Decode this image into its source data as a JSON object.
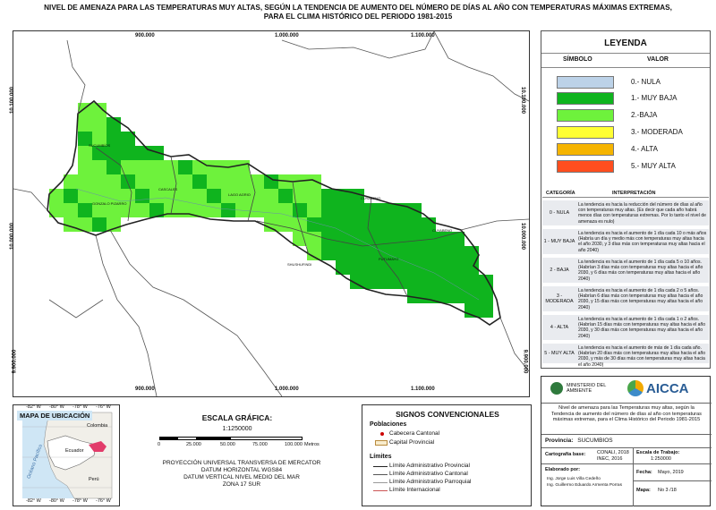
{
  "title": {
    "line1": "NIVEL DE AMENAZA PARA LAS TEMPERATURAS MUY ALTAS, SEGÚN LA TENDENCIA DE AUMENTO DEL NÚMERO DE DÍAS AL AÑO CON TEMPERATURAS MÁXIMAS EXTREMAS,",
    "line2": "PARA EL CLIMA HISTÓRICO DEL PERIODO 1981-2015"
  },
  "map": {
    "x_ticks": [
      "900.000",
      "1.000.000",
      "1.100.000"
    ],
    "y_ticks": [
      "10.100.000",
      "10.000.000",
      "9.900.000"
    ],
    "place_labels": [
      "GONZALO PIZARRO",
      "CASCALES",
      "LAGO AGRIO",
      "SHUSHUFINDI",
      "CUYABENO",
      "PUTUMAYO",
      "CUYABENO",
      "SUCUMBÍOS"
    ]
  },
  "legend": {
    "title": "LEYENDA",
    "col_symbol": "SÍMBOLO",
    "col_value": "VALOR",
    "items": [
      {
        "label": "0.- NULA",
        "color": "#bcd2e8"
      },
      {
        "label": "1.- MUY BAJA",
        "color": "#0fb41e"
      },
      {
        "label": "2.-BAJA",
        "color": "#6ef23c"
      },
      {
        "label": "3.- MODERADA",
        "color": "#ffff33"
      },
      {
        "label": "4.- ALTA",
        "color": "#f5b400"
      },
      {
        "label": "5.- MUY ALTA",
        "color": "#ff4e1e"
      }
    ],
    "interp_head_cat": "CATEGORÍA",
    "interp_head_txt": "INTERPRETACIÓN",
    "interp": [
      {
        "cat": "0 - NULA",
        "txt": "La tendencia es hacia la reducción del número de días al año con temperaturas muy altas. (Es decir que cada año habrá menos días con temperaturas extremas. Por lo tanto el nivel de amenaza es nulo)"
      },
      {
        "cat": "1 - MUY BAJA",
        "txt": "La tendencia es hacia el aumento de 1 día cada 10 o más años (Habría un día y medio más con temperaturas muy altas hacia el año 2030, y 3 días más con temperaturas muy altas hacia el año 2040)"
      },
      {
        "cat": "2 - BAJA",
        "txt": "La tendencia es hacia el aumento de 1 día cada 5 o 10 años. (Habrían 3 días más con temperaturas muy altas hacia el año 2030, y 6 días más con temperaturas muy altas hacia el año 2040)"
      },
      {
        "cat": "3 - MODERADA",
        "txt": "La tendencia es hacia el aumento de 1 día cada 2 o 5 años. (Habrían 6 días más con temperaturas muy altas hacia el año 2030, y 15 días más con temperaturas muy altas hacia el año 2040)"
      },
      {
        "cat": "4 - ALTA",
        "txt": "La tendencia es hacia el aumento de 1 día cada 1 o 2 años. (Habrían 15 días más con temperaturas muy altas hacia el año 2030, y 30 días más con temperaturas muy altas hacia el año 2040)"
      },
      {
        "cat": "5 - MUY ALTA",
        "txt": "La tendencia es hacia el aumento de más de 1 día cada año. (Habrían 20 días más con temperaturas muy altas hacia el año 2030, y más de 30 días más con temperaturas muy altas hacia el año 2040)"
      }
    ]
  },
  "location_map": {
    "title": "MAPA DE UBICACIÓN",
    "top_ticks": [
      "-82° W",
      "-80° W",
      "-78° W",
      "-76° W"
    ],
    "bottom_ticks": [
      "-82° W",
      "-80° W",
      "-78° W",
      "-76° W"
    ],
    "labels": {
      "colombia": "Colombia",
      "ecuador": "Ecuador",
      "peru": "Perú",
      "ocean": "Océano Pacífico"
    }
  },
  "scale": {
    "title": "ESCALA GRÁFICA:",
    "ratio": "1:1250000",
    "ticks": [
      "0",
      "25.000",
      "50.000",
      "75.000",
      "100.000"
    ],
    "unit": "Metros",
    "projection_lines": [
      "PROYECCIÓN UNIVERSAL TRANSVERSA DE MERCATOR",
      "DATUM HORIZONTAL WGS84",
      "DATUM VERTICAL NIVEL MEDIO DEL MAR",
      "ZONA 17 SUR"
    ]
  },
  "signs": {
    "title": "SIGNOS CONVENCIONALES",
    "pop_head": "Poblaciones",
    "pop_items": [
      "Cabecera Cantonal",
      "Capital Provincial"
    ],
    "limits_head": "Límites",
    "limit_items": [
      "Límite Administrativo Provincial",
      "Límite Administrativo Cantonal",
      "Límite Administrativo Parroquial",
      "Límite Internacional"
    ]
  },
  "info": {
    "ministry": "MINISTERIO DEL AMBIENTE",
    "logo": "AICCA",
    "description": "Nivel de amenaza para las Temperaturas muy altas, según la Tendencia de aumento del número de días al año con temperaturas máximas extremas, para el Clima Histórico del Periodo 1981-2015",
    "provincia_label": "Provincia:",
    "provincia": "SUCUMBIOS",
    "cart_label": "Cartografía base:",
    "cart_value1": "CONALI, 2018",
    "cart_value2": "INEC, 2016",
    "escala_label": "Escala de Trabajo:",
    "escala_value": "1:250000",
    "elab_label": "Elaborado por:",
    "elab_names": [
      "Ing. Jorge Luis Villa Cedeño",
      "Ing. Guillermo Eduardo Armenta Porras"
    ],
    "fecha_label": "Fecha:",
    "fecha_value": "Mayo, 2019",
    "mapa_label": "Mapa:",
    "mapa_value": "No 3 /18"
  }
}
